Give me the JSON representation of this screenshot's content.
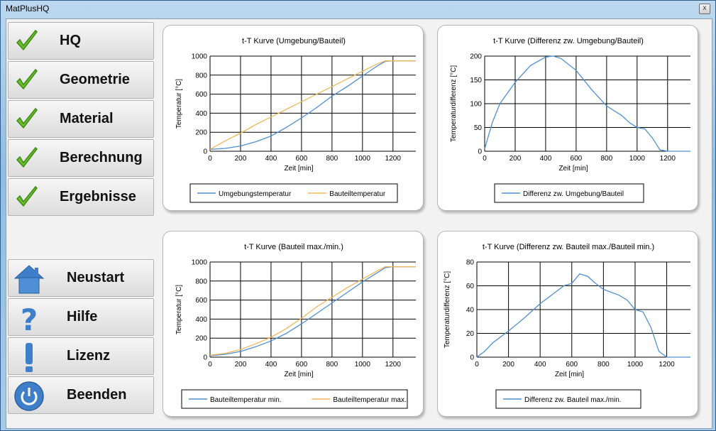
{
  "window": {
    "title": "MatPlusHQ",
    "close_label": "x"
  },
  "nav": {
    "steps": [
      {
        "label": "HQ"
      },
      {
        "label": "Geometrie"
      },
      {
        "label": "Material"
      },
      {
        "label": "Berechnung"
      },
      {
        "label": "Ergebnisse"
      }
    ],
    "actions": [
      {
        "label": "Neustart",
        "icon": "home-icon"
      },
      {
        "label": "Hilfe",
        "icon": "question-icon"
      },
      {
        "label": "Lizenz",
        "icon": "exclamation-icon"
      },
      {
        "label": "Beenden",
        "icon": "power-icon"
      }
    ]
  },
  "colors": {
    "series_blue": "#4f8fd0",
    "series_orange": "#f2b65a",
    "check_green": "#6cbf2c"
  },
  "chart_data": [
    {
      "type": "line",
      "title": "t-T Kurve (Umgebung/Bauteil)",
      "xlabel": "Zeit [min]",
      "ylabel": "Temperatur [°C]",
      "xlim": [
        0,
        1350
      ],
      "ylim": [
        0,
        1000
      ],
      "xticks": [
        0,
        200,
        400,
        600,
        800,
        1000,
        1200
      ],
      "yticks": [
        0,
        200,
        400,
        600,
        800,
        1000
      ],
      "grid": true,
      "legend_position": "bottom",
      "series": [
        {
          "name": "Umgebungstemperatur",
          "color": "#4f8fd0",
          "x": [
            0,
            100,
            200,
            300,
            400,
            500,
            600,
            700,
            800,
            900,
            1000,
            1100,
            1150,
            1200,
            1350
          ],
          "y": [
            20,
            30,
            55,
            100,
            160,
            250,
            350,
            460,
            580,
            680,
            790,
            900,
            945,
            950,
            950
          ]
        },
        {
          "name": "Bauteiltemperatur",
          "color": "#f2b65a",
          "x": [
            0,
            100,
            200,
            300,
            400,
            500,
            600,
            700,
            800,
            900,
            1000,
            1100,
            1150,
            1200,
            1350
          ],
          "y": [
            20,
            110,
            190,
            280,
            360,
            440,
            520,
            600,
            680,
            760,
            840,
            920,
            950,
            950,
            950
          ]
        }
      ]
    },
    {
      "type": "line",
      "title": "t-T Kurve  (Differenz zw. Umgebung/Bauteil)",
      "xlabel": "Zeit [min]",
      "ylabel": "Temperaturdifferenz [°C]",
      "xlim": [
        0,
        1350
      ],
      "ylim": [
        0,
        200
      ],
      "xticks": [
        0,
        200,
        400,
        600,
        800,
        1000,
        1200
      ],
      "yticks": [
        0,
        50,
        100,
        150,
        200
      ],
      "grid": true,
      "legend_position": "bottom",
      "series": [
        {
          "name": "Differenz zw. Umgebung/Bauteil",
          "color": "#4f8fd0",
          "x": [
            0,
            50,
            100,
            200,
            300,
            400,
            450,
            500,
            600,
            700,
            800,
            900,
            950,
            1000,
            1050,
            1100,
            1150,
            1200,
            1350
          ],
          "y": [
            5,
            60,
            100,
            145,
            180,
            198,
            200,
            195,
            170,
            130,
            95,
            75,
            60,
            50,
            47,
            28,
            3,
            0,
            0
          ]
        }
      ]
    },
    {
      "type": "line",
      "title": "t-T Kurve (Bauteil max./min.)",
      "xlabel": "Zeit [min]",
      "ylabel": "Temperatur [°C]",
      "xlim": [
        0,
        1350
      ],
      "ylim": [
        0,
        1000
      ],
      "xticks": [
        0,
        200,
        400,
        600,
        800,
        1000,
        1200
      ],
      "yticks": [
        0,
        200,
        400,
        600,
        800,
        1000
      ],
      "grid": true,
      "legend_position": "bottom",
      "series": [
        {
          "name": "Bauteiltemperatur min.",
          "color": "#4f8fd0",
          "x": [
            0,
            100,
            200,
            300,
            400,
            500,
            600,
            700,
            800,
            900,
            1000,
            1100,
            1150,
            1200,
            1350
          ],
          "y": [
            15,
            30,
            60,
            110,
            170,
            250,
            350,
            460,
            570,
            680,
            790,
            890,
            940,
            950,
            950
          ]
        },
        {
          "name": "Bauteiltemperatur max.",
          "color": "#f2b65a",
          "x": [
            0,
            100,
            200,
            300,
            400,
            500,
            600,
            700,
            800,
            900,
            1000,
            1100,
            1150,
            1200,
            1350
          ],
          "y": [
            20,
            40,
            80,
            140,
            210,
            300,
            410,
            530,
            630,
            730,
            820,
            910,
            950,
            950,
            950
          ]
        }
      ]
    },
    {
      "type": "line",
      "title": "t-T Kurve (Differenz zw. Bauteil max./Bauteil min.)",
      "xlabel": "Zeit [min]",
      "ylabel": "Temperaturdifferenz [°C]",
      "xlim": [
        0,
        1350
      ],
      "ylim": [
        0,
        80
      ],
      "xticks": [
        0,
        200,
        400,
        600,
        800,
        1000,
        1200
      ],
      "yticks": [
        0,
        20,
        40,
        60,
        80
      ],
      "grid": true,
      "legend_position": "bottom",
      "series": [
        {
          "name": "Differenz zw. Bauteil max./min.",
          "color": "#4f8fd0",
          "x": [
            0,
            50,
            100,
            200,
            300,
            400,
            500,
            550,
            600,
            650,
            700,
            750,
            800,
            900,
            950,
            1000,
            1050,
            1100,
            1150,
            1200,
            1350
          ],
          "y": [
            0,
            5,
            12,
            22,
            33,
            45,
            55,
            60,
            62,
            70,
            68,
            62,
            57,
            52,
            48,
            40,
            38,
            25,
            5,
            0,
            0
          ]
        }
      ]
    }
  ]
}
